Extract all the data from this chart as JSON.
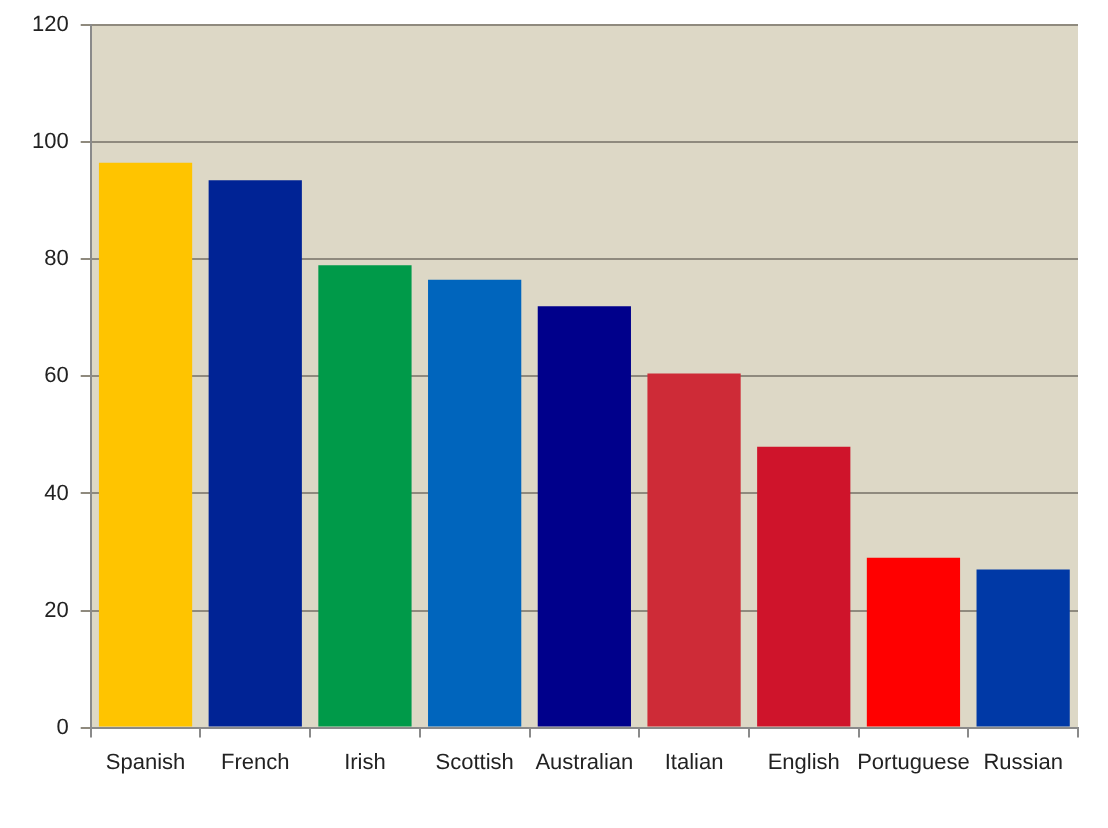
{
  "chart_data": {
    "type": "bar",
    "categories": [
      "Spanish",
      "French",
      "Irish",
      "Scottish",
      "Australian",
      "Italian",
      "English",
      "Portuguese",
      "Russian"
    ],
    "values": [
      96.5,
      93.5,
      79,
      76.5,
      72,
      60.5,
      48,
      29,
      27
    ],
    "colors": [
      "#ffc400",
      "#002395",
      "#009a49",
      "#0065bd",
      "#00008b",
      "#ce2b37",
      "#cf142b",
      "#ff0000",
      "#0039a6"
    ],
    "ylim": [
      0,
      120
    ],
    "yticks": [
      0,
      20,
      40,
      60,
      80,
      100,
      120
    ],
    "grid": "y"
  }
}
